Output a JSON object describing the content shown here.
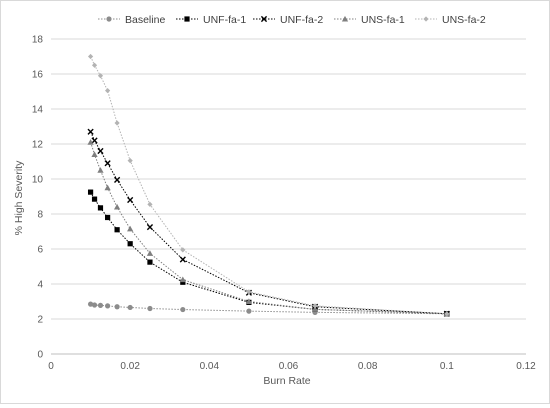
{
  "chart_data": {
    "type": "scatter",
    "title": "",
    "xlabel": "Burn Rate",
    "ylabel": "% High Severity",
    "xlim": [
      0,
      0.12
    ],
    "ylim": [
      0,
      18
    ],
    "xticks": [
      0,
      0.02,
      0.04,
      0.06,
      0.08,
      0.1,
      0.12
    ],
    "yticks": [
      0,
      2,
      4,
      6,
      8,
      10,
      12,
      14,
      16,
      18
    ],
    "xtick_labels": [
      "0",
      "0.02",
      "0.04",
      "0.06",
      "0.08",
      "0.1",
      "0.12"
    ],
    "ytick_labels": [
      "0",
      "2",
      "4",
      "6",
      "8",
      "10",
      "12",
      "14",
      "16",
      "18"
    ],
    "grid": "horizontal",
    "legend_position": "top",
    "series": [
      {
        "name": "Baseline",
        "marker": "circle",
        "color": "#8c8c8c",
        "x": [
          0.01,
          0.011,
          0.0125,
          0.0143,
          0.0167,
          0.02,
          0.025,
          0.0333,
          0.05,
          0.0667,
          0.1
        ],
        "y": [
          2.85,
          2.8,
          2.78,
          2.75,
          2.7,
          2.66,
          2.6,
          2.54,
          2.45,
          2.38,
          2.3
        ]
      },
      {
        "name": "UNF-fa-1",
        "marker": "square",
        "color": "#000000",
        "x": [
          0.01,
          0.011,
          0.0125,
          0.0143,
          0.0167,
          0.02,
          0.025,
          0.0333,
          0.05,
          0.0667,
          0.1
        ],
        "y": [
          9.25,
          8.85,
          8.35,
          7.8,
          7.1,
          6.3,
          5.25,
          4.1,
          2.95,
          2.55,
          2.3
        ]
      },
      {
        "name": "UNF-fa-2",
        "marker": "x",
        "color": "#000000",
        "x": [
          0.01,
          0.011,
          0.0125,
          0.0143,
          0.0167,
          0.02,
          0.025,
          0.0333,
          0.05,
          0.0667,
          0.1
        ],
        "y": [
          12.7,
          12.2,
          11.6,
          10.9,
          9.95,
          8.8,
          7.25,
          5.4,
          3.5,
          2.7,
          2.3
        ]
      },
      {
        "name": "UNS-fa-1",
        "marker": "triangle",
        "color": "#7f7f7f",
        "x": [
          0.01,
          0.011,
          0.0125,
          0.0143,
          0.0167,
          0.02,
          0.025,
          0.0333,
          0.05,
          0.0667,
          0.1
        ],
        "y": [
          12.1,
          11.4,
          10.5,
          9.5,
          8.4,
          7.15,
          5.75,
          4.25,
          3.0,
          2.55,
          2.3
        ]
      },
      {
        "name": "UNS-fa-2",
        "marker": "diamond",
        "color": "#b3b3b3",
        "x": [
          0.01,
          0.011,
          0.0125,
          0.0143,
          0.0167,
          0.02,
          0.025,
          0.0333,
          0.05,
          0.0667,
          0.1
        ],
        "y": [
          17.0,
          16.5,
          15.9,
          15.05,
          13.2,
          11.05,
          8.55,
          5.95,
          3.55,
          2.75,
          2.3
        ]
      }
    ]
  }
}
